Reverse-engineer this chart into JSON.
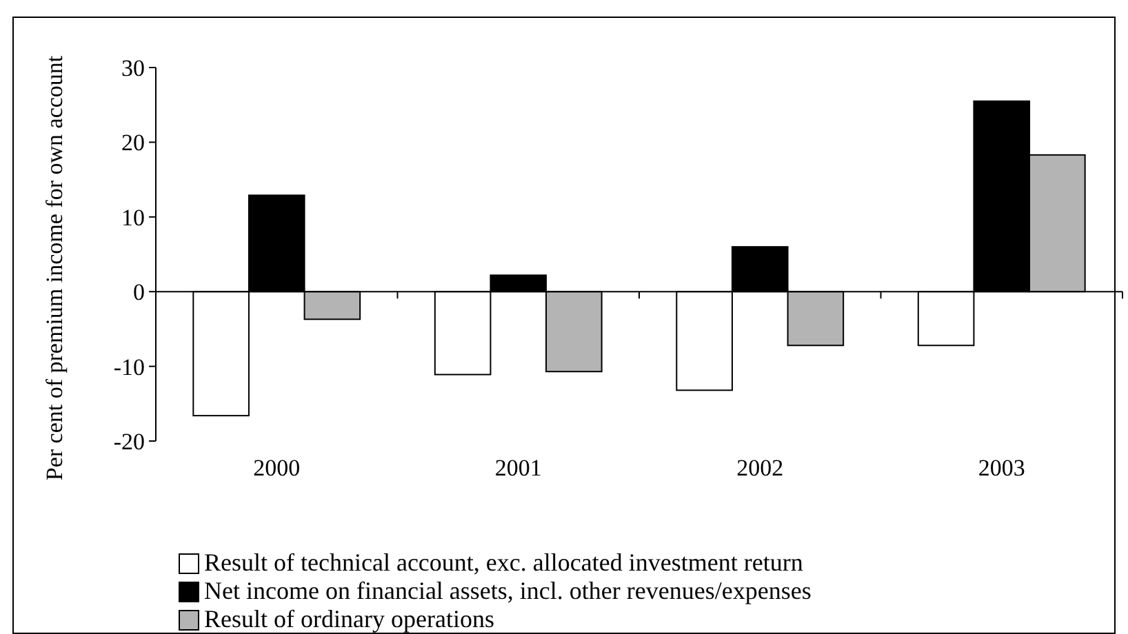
{
  "chart_data": {
    "type": "bar",
    "ylabel": "Per cent of premium income for own account",
    "categories": [
      "2000",
      "2001",
      "2002",
      "2003"
    ],
    "series": [
      {
        "name": "Result of technical account, exc. allocated investment return",
        "color": "#ffffff",
        "values": [
          -16.6,
          -11.1,
          -13.2,
          -7.2
        ]
      },
      {
        "name": "Net income on financial assets, incl. other revenues/expenses",
        "color": "#000000",
        "values": [
          12.9,
          2.2,
          6.0,
          25.5
        ]
      },
      {
        "name": "Result of ordinary operations",
        "color": "#b4b4b4",
        "values": [
          -3.7,
          -10.7,
          -7.2,
          18.3
        ]
      }
    ],
    "ylim": [
      -20,
      30
    ],
    "yticks": [
      -20,
      -10,
      0,
      10,
      20,
      30
    ],
    "legend": "bottom"
  }
}
